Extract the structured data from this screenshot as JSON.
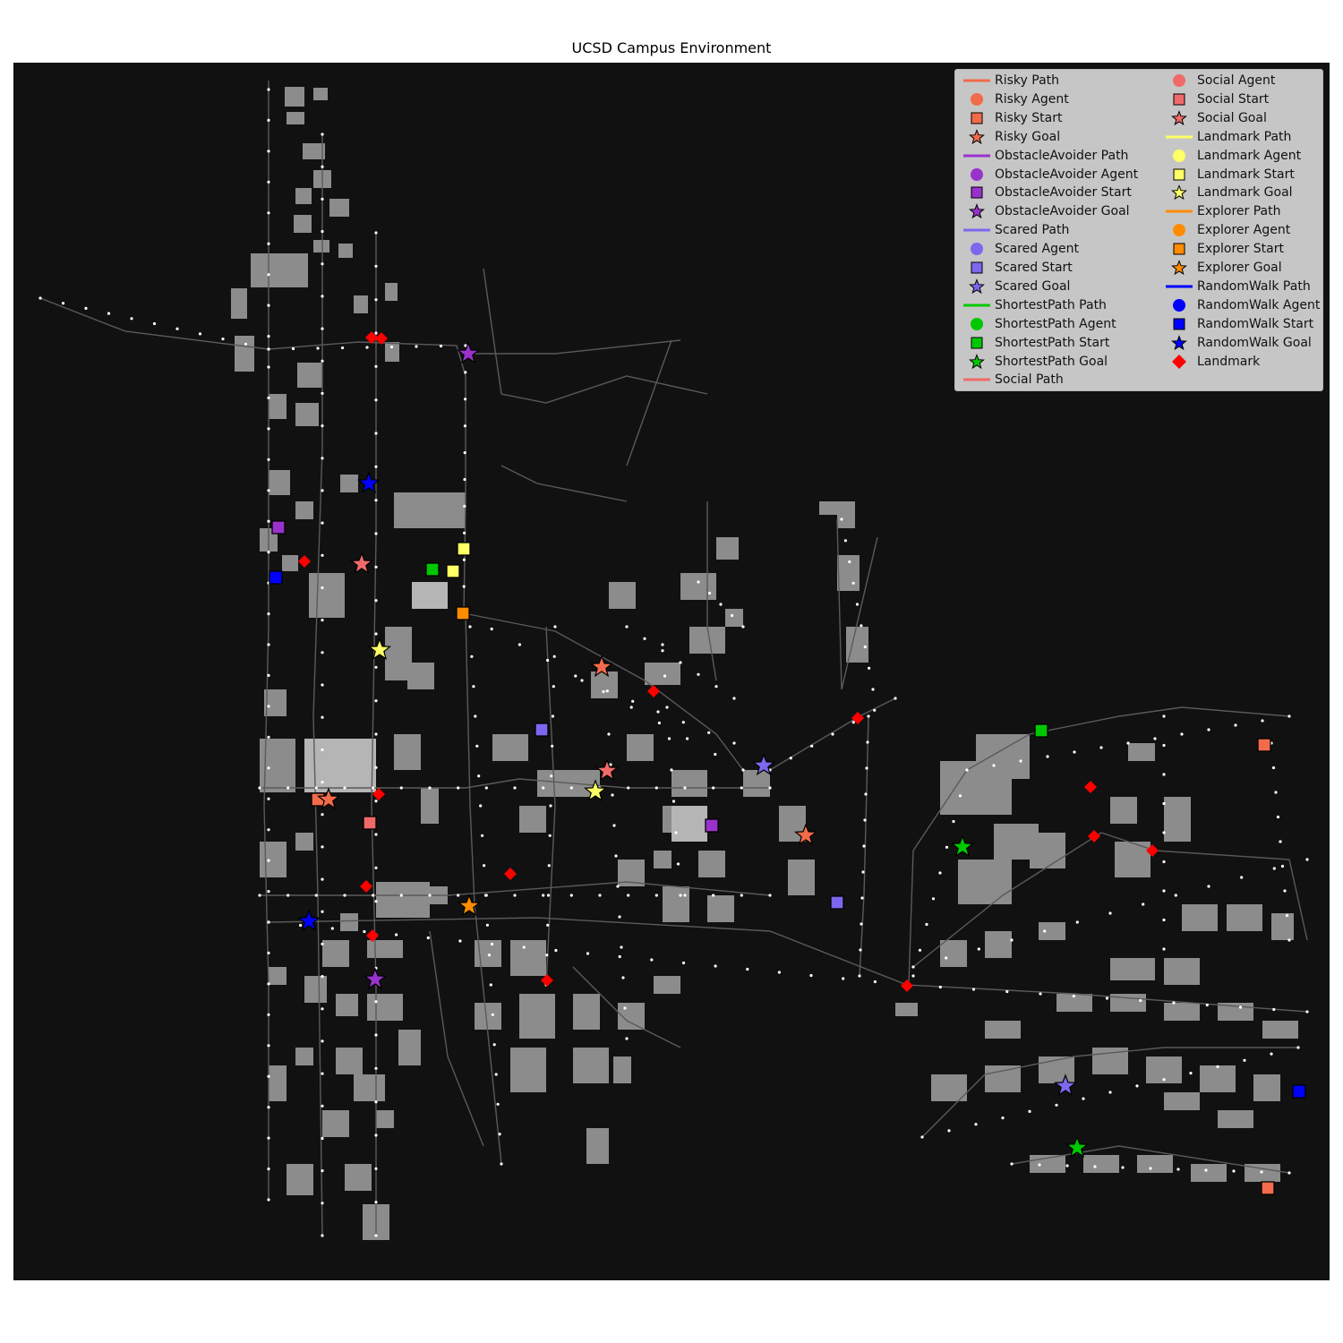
{
  "title": "UCSD Campus Environment",
  "legend_entries": [
    {
      "label": "Risky Path",
      "kind": "line",
      "color": "#f26b4a"
    },
    {
      "label": "Risky Agent",
      "kind": "circle",
      "color": "#f26b4a"
    },
    {
      "label": "Risky Start",
      "kind": "square",
      "color": "#f26b4a"
    },
    {
      "label": "Risky Goal",
      "kind": "star",
      "color": "#f26b4a"
    },
    {
      "label": "ObstacleAvoider Path",
      "kind": "line",
      "color": "#9932cc"
    },
    {
      "label": "ObstacleAvoider Agent",
      "kind": "circle",
      "color": "#9932cc"
    },
    {
      "label": "ObstacleAvoider Start",
      "kind": "square",
      "color": "#9932cc"
    },
    {
      "label": "ObstacleAvoider Goal",
      "kind": "star",
      "color": "#9932cc"
    },
    {
      "label": "Scared Path",
      "kind": "line",
      "color": "#7b68ee"
    },
    {
      "label": "Scared Agent",
      "kind": "circle",
      "color": "#7b68ee"
    },
    {
      "label": "Scared Start",
      "kind": "square",
      "color": "#7b68ee"
    },
    {
      "label": "Scared Goal",
      "kind": "star",
      "color": "#7b68ee"
    },
    {
      "label": "ShortestPath Path",
      "kind": "line",
      "color": "#00c800"
    },
    {
      "label": "ShortestPath Agent",
      "kind": "circle",
      "color": "#00c800"
    },
    {
      "label": "ShortestPath Start",
      "kind": "square",
      "color": "#00c800"
    },
    {
      "label": "ShortestPath Goal",
      "kind": "star",
      "color": "#00c800"
    },
    {
      "label": "Social Path",
      "kind": "line",
      "color": "#f06a6a"
    },
    {
      "label": "Social Agent",
      "kind": "circle",
      "color": "#f06a6a"
    },
    {
      "label": "Social Start",
      "kind": "square",
      "color": "#f06a6a"
    },
    {
      "label": "Social Goal",
      "kind": "star",
      "color": "#f06a6a"
    },
    {
      "label": "Landmark Path",
      "kind": "line",
      "color": "#ffff66"
    },
    {
      "label": "Landmark Agent",
      "kind": "circle",
      "color": "#ffff66"
    },
    {
      "label": "Landmark Start",
      "kind": "square",
      "color": "#ffff66"
    },
    {
      "label": "Landmark Goal",
      "kind": "star",
      "color": "#ffff66"
    },
    {
      "label": "Explorer Path",
      "kind": "line",
      "color": "#ff8c00"
    },
    {
      "label": "Explorer Agent",
      "kind": "circle",
      "color": "#ff8c00"
    },
    {
      "label": "Explorer Start",
      "kind": "square",
      "color": "#ff8c00"
    },
    {
      "label": "Explorer Goal",
      "kind": "star",
      "color": "#ff8c00"
    },
    {
      "label": "RandomWalk Path",
      "kind": "line",
      "color": "#0000ff"
    },
    {
      "label": "RandomWalk Agent",
      "kind": "circle",
      "color": "#0000ff"
    },
    {
      "label": "RandomWalk Start",
      "kind": "square",
      "color": "#0000ff"
    },
    {
      "label": "RandomWalk Goal",
      "kind": "star",
      "color": "#0000ff"
    },
    {
      "label": "Landmark",
      "kind": "diamond",
      "color": "#ff0000"
    }
  ],
  "colors": {
    "background": "#111111",
    "building": "#8c8c8c",
    "road": "#5a5a5a",
    "node": "#ffffff",
    "landmark": "#ff0000"
  },
  "landmark_color": "#ff0000"
}
